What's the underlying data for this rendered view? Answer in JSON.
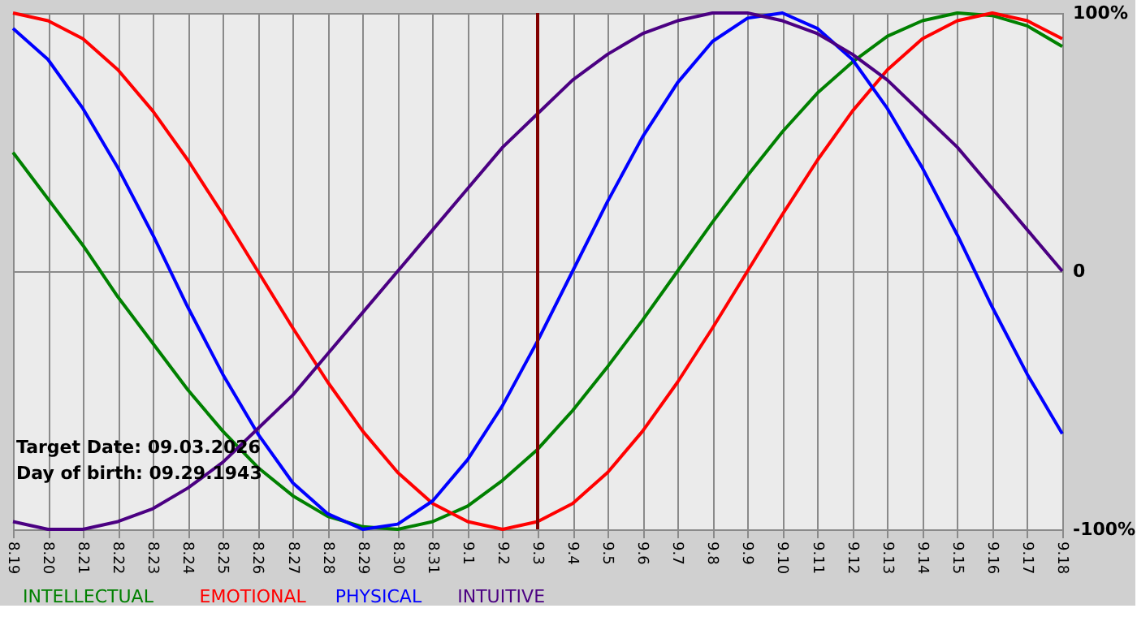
{
  "chart_data": {
    "type": "line",
    "categories": [
      "8.19",
      "8.20",
      "8.21",
      "8.22",
      "8.23",
      "8.24",
      "8.25",
      "8.26",
      "8.27",
      "8.28",
      "8.29",
      "8.30",
      "8.31",
      "9.1",
      "9.2",
      "9.3",
      "9.4",
      "9.5",
      "9.6",
      "9.7",
      "9.8",
      "9.9",
      "9.10",
      "9.11",
      "9.12",
      "9.13",
      "9.14",
      "9.15",
      "9.16",
      "9.17",
      "9.18"
    ],
    "series": [
      {
        "name": "INTELLECTUAL",
        "color": "#008000",
        "values": [
          46,
          28,
          10,
          -10,
          -28,
          -46,
          -62,
          -76,
          -87,
          -95,
          -99,
          -100,
          -97,
          -91,
          -81,
          -69,
          -54,
          -37,
          -19,
          0,
          19,
          37,
          54,
          69,
          81,
          91,
          97,
          100,
          99,
          95,
          87
        ]
      },
      {
        "name": "EMOTIONAL",
        "color": "#ff0000",
        "values": [
          100,
          97,
          90,
          78,
          62,
          43,
          22,
          0,
          -22,
          -43,
          -62,
          -78,
          -90,
          -97,
          -100,
          -97,
          -90,
          -78,
          -62,
          -43,
          -22,
          0,
          22,
          43,
          62,
          78,
          90,
          97,
          100,
          97,
          90
        ]
      },
      {
        "name": "PHYSICAL",
        "color": "#0000ff",
        "values": [
          94,
          82,
          63,
          40,
          14,
          -14,
          -40,
          -63,
          -82,
          -94,
          -100,
          -98,
          -89,
          -73,
          -52,
          -27,
          0,
          27,
          52,
          73,
          89,
          98,
          100,
          94,
          82,
          63,
          40,
          14,
          -14,
          -40,
          -63
        ]
      },
      {
        "name": "INTUITIVE",
        "color": "#4b0082",
        "values": [
          -97,
          -100,
          -100,
          -97,
          -92,
          -84,
          -74,
          -61,
          -48,
          -32,
          -16,
          0,
          16,
          32,
          48,
          61,
          74,
          84,
          92,
          97,
          100,
          100,
          97,
          92,
          84,
          74,
          61,
          48,
          32,
          16,
          0
        ]
      }
    ],
    "ylim": [
      -100,
      100
    ],
    "yticks": [
      {
        "value": 100,
        "label": "100%"
      },
      0,
      {
        "value": -100,
        "label": "-100%"
      }
    ],
    "ref_lines": [
      {
        "axis": "x",
        "value": "9.3",
        "color": "#800000"
      }
    ],
    "annotations": [
      "Target Date: 09.03.2026",
      "Day of birth: 09.29.1943"
    ],
    "grid": true,
    "legend": "bottom",
    "line_style": "solid",
    "marker": "none"
  }
}
